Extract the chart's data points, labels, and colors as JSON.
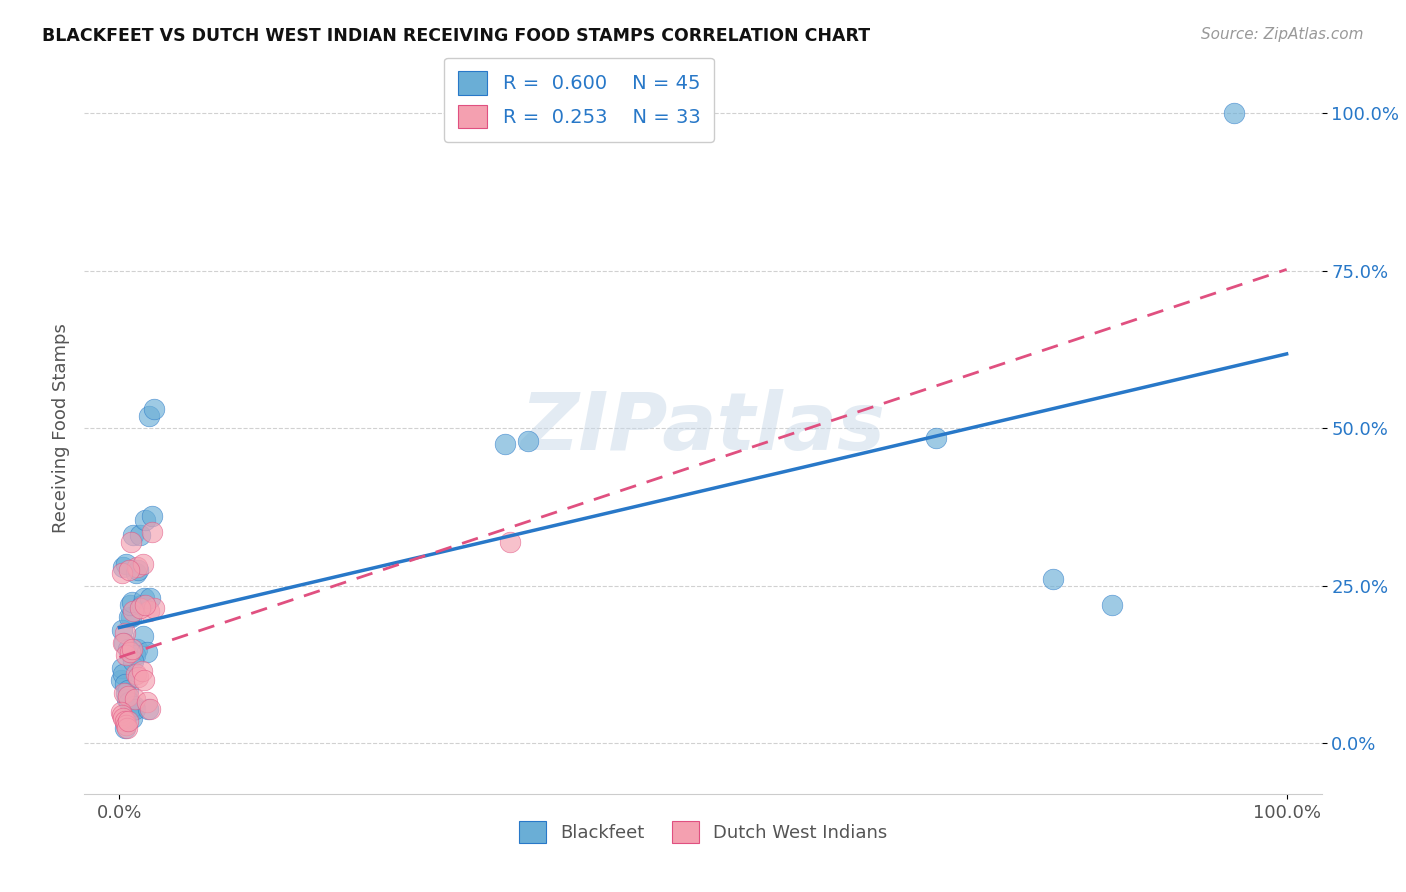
{
  "title": "BLACKFEET VS DUTCH WEST INDIAN RECEIVING FOOD STAMPS CORRELATION CHART",
  "source": "Source: ZipAtlas.com",
  "ylabel": "Receiving Food Stamps",
  "watermark": "ZIPatlas",
  "legend_label1": "Blackfeet",
  "legend_label2": "Dutch West Indians",
  "R1": 0.6,
  "N1": 45,
  "R2": 0.253,
  "N2": 33,
  "blue_color": "#6aaed6",
  "pink_color": "#f4a0b0",
  "blue_line_color": "#2878c8",
  "pink_line_color": "#e05080",
  "blue_x": [
    0.5,
    1.0,
    1.5,
    2.0,
    2.5,
    3.0,
    0.2,
    0.8,
    1.2,
    1.8,
    2.2,
    2.8,
    0.3,
    0.6,
    0.9,
    1.1,
    1.4,
    1.6,
    1.9,
    2.1,
    0.4,
    0.7,
    1.3,
    2.4,
    2.6,
    0.15,
    0.25,
    0.35,
    0.45,
    0.55,
    0.65,
    0.75,
    0.85,
    0.95,
    1.05,
    1.15,
    1.25,
    1.35,
    2.45,
    33.0,
    35.0,
    70.0,
    80.0,
    85.0,
    95.5
  ],
  "blue_y": [
    2.5,
    20.0,
    15.0,
    17.0,
    52.0,
    53.0,
    18.0,
    20.0,
    33.0,
    33.0,
    35.5,
    36.0,
    28.0,
    28.5,
    22.0,
    22.5,
    27.0,
    27.5,
    22.0,
    23.0,
    16.0,
    15.0,
    14.0,
    14.5,
    23.0,
    10.0,
    12.0,
    11.0,
    9.5,
    8.0,
    7.0,
    8.5,
    6.5,
    5.0,
    4.0,
    13.0,
    6.0,
    5.5,
    5.5,
    47.5,
    48.0,
    48.5,
    26.0,
    22.0,
    100.0
  ],
  "pink_x": [
    0.5,
    1.0,
    1.5,
    2.0,
    2.5,
    3.0,
    0.2,
    0.8,
    1.2,
    1.8,
    2.2,
    2.8,
    0.3,
    0.6,
    0.9,
    1.1,
    1.4,
    1.6,
    1.9,
    2.1,
    0.4,
    0.7,
    1.3,
    2.4,
    2.6,
    0.15,
    0.25,
    0.35,
    0.45,
    0.55,
    0.65,
    0.75,
    33.5
  ],
  "pink_y": [
    17.5,
    32.0,
    28.0,
    28.5,
    21.0,
    21.5,
    27.0,
    27.5,
    21.0,
    21.5,
    22.0,
    33.5,
    16.0,
    14.0,
    14.5,
    15.0,
    11.0,
    10.5,
    11.5,
    10.0,
    8.0,
    7.5,
    7.0,
    6.5,
    5.5,
    5.0,
    4.5,
    4.0,
    3.5,
    3.0,
    2.5,
    3.5,
    32.0
  ],
  "xlim": [
    -3,
    103
  ],
  "ylim": [
    -8,
    108
  ]
}
